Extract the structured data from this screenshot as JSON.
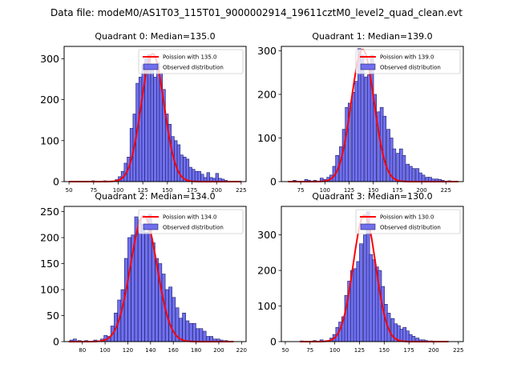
{
  "suptitle": "Data file: modeM0/AS1T03_115T01_9000002914_19611cztM0_level2_quad_clean.evt",
  "colors": {
    "bar_fill": "#7070ee",
    "bar_edge": "#1a1a66",
    "curve": "#ff0000",
    "axis": "#000000"
  },
  "chart_data": [
    {
      "type": "bar",
      "title": "Quadrant 0: Median=135.0",
      "legend": {
        "placement": "top-right",
        "curve_label": "Poission with 135.0",
        "bars_label": "Observed distribution"
      },
      "xlim": [
        45,
        230
      ],
      "ylim": [
        0,
        330
      ],
      "xticks": [
        50,
        75,
        100,
        125,
        150,
        175,
        200,
        225
      ],
      "yticks": [
        0,
        100,
        200,
        300
      ],
      "bin_width": 3,
      "bins": [
        [
          64,
          1
        ],
        [
          73,
          2
        ],
        [
          85,
          2
        ],
        [
          91,
          1
        ],
        [
          97,
          5
        ],
        [
          100,
          12
        ],
        [
          103,
          25
        ],
        [
          106,
          45
        ],
        [
          109,
          60
        ],
        [
          112,
          130
        ],
        [
          115,
          165
        ],
        [
          118,
          240
        ],
        [
          121,
          255
        ],
        [
          124,
          285
        ],
        [
          127,
          300
        ],
        [
          130,
          310
        ],
        [
          133,
          275
        ],
        [
          136,
          255
        ],
        [
          139,
          290
        ],
        [
          142,
          265
        ],
        [
          145,
          225
        ],
        [
          148,
          165
        ],
        [
          151,
          140
        ],
        [
          154,
          110
        ],
        [
          157,
          100
        ],
        [
          160,
          90
        ],
        [
          163,
          65
        ],
        [
          166,
          60
        ],
        [
          169,
          55
        ],
        [
          172,
          35
        ],
        [
          175,
          30
        ],
        [
          178,
          25
        ],
        [
          181,
          25
        ],
        [
          184,
          18
        ],
        [
          187,
          10
        ],
        [
          190,
          22
        ],
        [
          193,
          10
        ],
        [
          196,
          8
        ],
        [
          199,
          20
        ],
        [
          202,
          8
        ],
        [
          205,
          6
        ],
        [
          208,
          3
        ],
        [
          211,
          1
        ]
      ],
      "curve": {
        "name": "Poission with 135.0",
        "peak": 312,
        "mean": 135.0,
        "sd": 11.6,
        "x_range": [
          50,
          225
        ]
      }
    },
    {
      "type": "bar",
      "title": "Quadrant 1: Median=139.0",
      "legend": {
        "placement": "top-right",
        "curve_label": "Poission with 139.0",
        "bars_label": "Observed distribution"
      },
      "xlim": [
        55,
        243
      ],
      "ylim": [
        0,
        310
      ],
      "xticks": [
        75,
        100,
        125,
        150,
        175,
        200,
        225
      ],
      "yticks": [
        0,
        100,
        200,
        300
      ],
      "bin_width": 3.3,
      "bins": [
        [
          67,
          3
        ],
        [
          79,
          5
        ],
        [
          82,
          3
        ],
        [
          88,
          3
        ],
        [
          95,
          8
        ],
        [
          98,
          5
        ],
        [
          102,
          10
        ],
        [
          105,
          15
        ],
        [
          108,
          35
        ],
        [
          111,
          60
        ],
        [
          115,
          80
        ],
        [
          118,
          120
        ],
        [
          121,
          170
        ],
        [
          124,
          180
        ],
        [
          128,
          205
        ],
        [
          131,
          230
        ],
        [
          134,
          305
        ],
        [
          137,
          290
        ],
        [
          141,
          240
        ],
        [
          144,
          245
        ],
        [
          147,
          290
        ],
        [
          150,
          200
        ],
        [
          154,
          160
        ],
        [
          157,
          170
        ],
        [
          160,
          150
        ],
        [
          164,
          120
        ],
        [
          167,
          100
        ],
        [
          170,
          75
        ],
        [
          174,
          65
        ],
        [
          177,
          75
        ],
        [
          180,
          60
        ],
        [
          184,
          40
        ],
        [
          187,
          35
        ],
        [
          190,
          30
        ],
        [
          194,
          30
        ],
        [
          197,
          20
        ],
        [
          200,
          15
        ],
        [
          204,
          10
        ],
        [
          207,
          10
        ],
        [
          210,
          6
        ],
        [
          214,
          6
        ],
        [
          217,
          5
        ],
        [
          220,
          3
        ],
        [
          227,
          2
        ]
      ],
      "curve": {
        "name": "Poission with 139.0",
        "peak": 303,
        "mean": 139.0,
        "sd": 11.8,
        "x_range": [
          62,
          238
        ]
      }
    },
    {
      "type": "bar",
      "title": "Quadrant 2: Median=134.0",
      "legend": {
        "placement": "top-right",
        "curve_label": "Poission with 134.0",
        "bars_label": "Observed distribution"
      },
      "xlim": [
        64,
        224
      ],
      "ylim": [
        0,
        260
      ],
      "xticks": [
        80,
        100,
        120,
        140,
        160,
        180,
        200,
        220
      ],
      "yticks": [
        0,
        50,
        100,
        150,
        200,
        250
      ],
      "bin_width": 2.9,
      "bins": [
        [
          69,
          3
        ],
        [
          72,
          5
        ],
        [
          76,
          2
        ],
        [
          82,
          2
        ],
        [
          90,
          3
        ],
        [
          96,
          5
        ],
        [
          99,
          12
        ],
        [
          102,
          10
        ],
        [
          105,
          30
        ],
        [
          108,
          55
        ],
        [
          111,
          80
        ],
        [
          114,
          100
        ],
        [
          117,
          160
        ],
        [
          120,
          200
        ],
        [
          123,
          205
        ],
        [
          126,
          240
        ],
        [
          129,
          235
        ],
        [
          132,
          225
        ],
        [
          135,
          210
        ],
        [
          138,
          245
        ],
        [
          141,
          190
        ],
        [
          144,
          160
        ],
        [
          147,
          150
        ],
        [
          150,
          130
        ],
        [
          153,
          100
        ],
        [
          156,
          105
        ],
        [
          159,
          85
        ],
        [
          162,
          65
        ],
        [
          165,
          45
        ],
        [
          168,
          55
        ],
        [
          171,
          40
        ],
        [
          174,
          35
        ],
        [
          177,
          35
        ],
        [
          180,
          25
        ],
        [
          183,
          25
        ],
        [
          186,
          20
        ],
        [
          189,
          10
        ],
        [
          192,
          10
        ],
        [
          195,
          5
        ],
        [
          198,
          5
        ],
        [
          201,
          3
        ],
        [
          205,
          2
        ]
      ],
      "curve": {
        "name": "Poission with 134.0",
        "peak": 242,
        "mean": 134.0,
        "sd": 11.6,
        "x_range": [
          68,
          213
        ]
      }
    },
    {
      "type": "bar",
      "title": "Quadrant 3: Median=130.0",
      "legend": {
        "placement": "top-right",
        "curve_label": "Poission with 130.0",
        "bars_label": "Observed distribution"
      },
      "xlim": [
        46,
        230
      ],
      "ylim": [
        0,
        380
      ],
      "xticks": [
        50,
        75,
        100,
        125,
        150,
        175,
        200,
        225
      ],
      "yticks": [
        0,
        100,
        200,
        300
      ],
      "bin_width": 3.3,
      "bins": [
        [
          65,
          2
        ],
        [
          78,
          3
        ],
        [
          85,
          5
        ],
        [
          91,
          3
        ],
        [
          95,
          10
        ],
        [
          98,
          20
        ],
        [
          101,
          40
        ],
        [
          104,
          55
        ],
        [
          107,
          70
        ],
        [
          110,
          130
        ],
        [
          113,
          170
        ],
        [
          116,
          200
        ],
        [
          119,
          205
        ],
        [
          122,
          225
        ],
        [
          125,
          275
        ],
        [
          129,
          300
        ],
        [
          132,
          365
        ],
        [
          135,
          245
        ],
        [
          138,
          230
        ],
        [
          141,
          210
        ],
        [
          144,
          200
        ],
        [
          147,
          155
        ],
        [
          150,
          105
        ],
        [
          153,
          80
        ],
        [
          157,
          65
        ],
        [
          160,
          50
        ],
        [
          163,
          45
        ],
        [
          166,
          35
        ],
        [
          169,
          40
        ],
        [
          172,
          30
        ],
        [
          175,
          20
        ],
        [
          178,
          15
        ],
        [
          182,
          10
        ],
        [
          185,
          5
        ],
        [
          188,
          5
        ],
        [
          191,
          3
        ],
        [
          196,
          2
        ],
        [
          204,
          1
        ]
      ],
      "curve": {
        "name": "Poission with 130.0",
        "peak": 356,
        "mean": 130.0,
        "sd": 11.4,
        "x_range": [
          65,
          215
        ]
      }
    }
  ]
}
